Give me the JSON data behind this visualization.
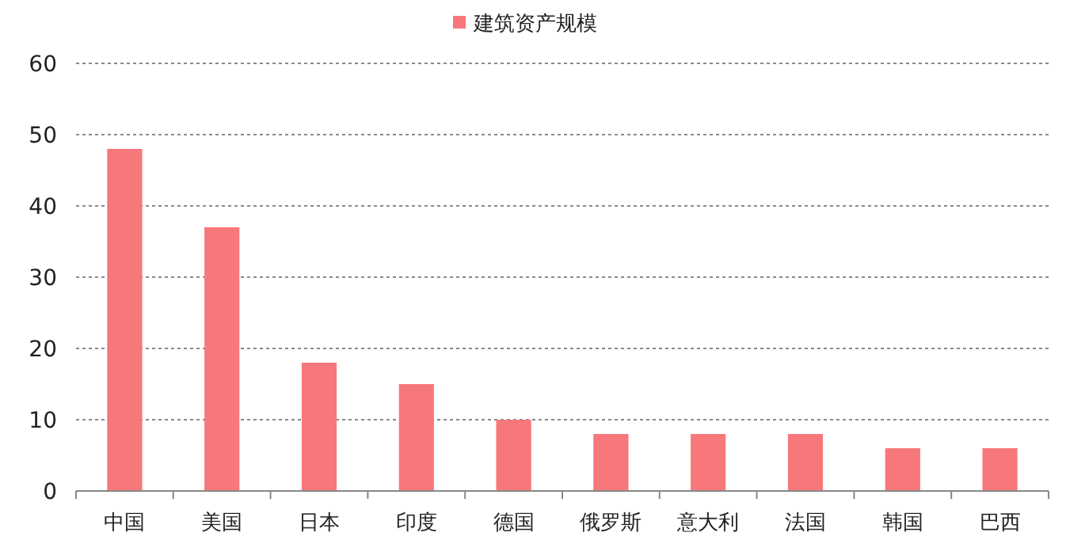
{
  "chart_data": {
    "type": "bar",
    "categories": [
      "中国",
      "美国",
      "日本",
      "印度",
      "德国",
      "俄罗斯",
      "意大利",
      "法国",
      "韩国",
      "巴西"
    ],
    "series": [
      {
        "name": "建筑资产规模",
        "color": "#f7787a",
        "values": [
          48,
          37,
          18,
          15,
          10,
          8,
          8,
          8,
          6,
          6
        ]
      }
    ],
    "ylim": [
      0,
      60
    ],
    "yticks": [
      0,
      10,
      20,
      30,
      40,
      50,
      60
    ],
    "grid": "y",
    "legend": "top"
  }
}
